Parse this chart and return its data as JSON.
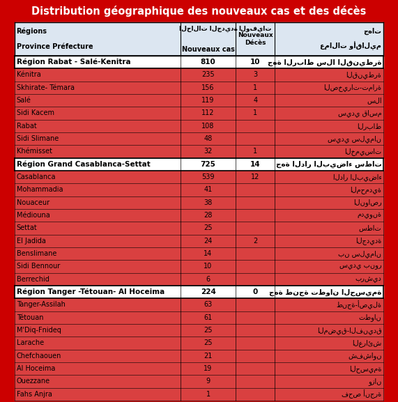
{
  "title": "Distribution géographique des nouveaux cas et des décès",
  "title_bg": "#cc0000",
  "title_color": "#ffffff",
  "header_bg": "#dce6f1",
  "region_bg": "#ffffff",
  "row_bg_red": "#d94040",
  "row_bg_light": "#dce6f1",
  "border_color": "#000000",
  "col_headers": [
    "Régions\n\nProvince Préfecture",
    "الحالات الجديدة\nNouveaux cas",
    "الوفيات\nNouveaux\nDécès",
    "جهات\n\nعمالات وأقاليم"
  ],
  "rows": [
    {
      "type": "region",
      "left": "Région Rabat - Salé-Kenitra",
      "mid1": "810",
      "mid2": "10",
      "right": "جهة الرباط سلا القنيطرة"
    },
    {
      "type": "data",
      "left": "Kénitra",
      "mid1": "235",
      "mid2": "3",
      "right": "القنيطرة"
    },
    {
      "type": "data",
      "left": "Skhirate- Témara",
      "mid1": "156",
      "mid2": "1",
      "right": "الصخيرات-تمارة"
    },
    {
      "type": "data",
      "left": "Salé",
      "mid1": "119",
      "mid2": "4",
      "right": "سلا"
    },
    {
      "type": "data",
      "left": "Sidi Kacem",
      "mid1": "112",
      "mid2": "1",
      "right": "سيدي قاسم"
    },
    {
      "type": "data",
      "left": "Rabat",
      "mid1": "108",
      "mid2": "",
      "right": "الرباط"
    },
    {
      "type": "data",
      "left": "Sidi Slimane",
      "mid1": "48",
      "mid2": "",
      "right": "سيدي سليمان"
    },
    {
      "type": "data",
      "left": "Khémisset",
      "mid1": "32",
      "mid2": "1",
      "right": "الخميسات"
    },
    {
      "type": "region",
      "left": "Région Grand Casablanca-Settat",
      "mid1": "725",
      "mid2": "14",
      "right": "جهة الدار البيضاء سطات"
    },
    {
      "type": "data",
      "left": "Casablanca",
      "mid1": "539",
      "mid2": "12",
      "right": "الدار البيضاء"
    },
    {
      "type": "data",
      "left": "Mohammadia",
      "mid1": "41",
      "mid2": "",
      "right": "المحمدية"
    },
    {
      "type": "data",
      "left": "Nouaceur",
      "mid1": "38",
      "mid2": "",
      "right": "النواصر"
    },
    {
      "type": "data",
      "left": "Médiouna",
      "mid1": "28",
      "mid2": "",
      "right": "مديونة"
    },
    {
      "type": "data",
      "left": "Settat",
      "mid1": "25",
      "mid2": "",
      "right": "سطات"
    },
    {
      "type": "data",
      "left": "El Jadida",
      "mid1": "24",
      "mid2": "2",
      "right": "الجديدة"
    },
    {
      "type": "data",
      "left": "Benslimane",
      "mid1": "14",
      "mid2": "",
      "right": "بن سليمان"
    },
    {
      "type": "data",
      "left": "Sidi Bennour",
      "mid1": "10",
      "mid2": "",
      "right": "سيدي بنور"
    },
    {
      "type": "data",
      "left": "Berrechid",
      "mid1": "6",
      "mid2": "",
      "right": "برشيد"
    },
    {
      "type": "region",
      "left": "Région Tanger -Tétouan- Al Hoceima",
      "mid1": "224",
      "mid2": "0",
      "right": "جهة طنجة تطوان الحسيمة"
    },
    {
      "type": "data",
      "left": "Tanger-Assilah",
      "mid1": "63",
      "mid2": "",
      "right": "طنجة-أصيلة"
    },
    {
      "type": "data",
      "left": "Tétouan",
      "mid1": "61",
      "mid2": "",
      "right": "تطوان"
    },
    {
      "type": "data",
      "left": "M'Diq-Fnideq",
      "mid1": "25",
      "mid2": "",
      "right": "المضيق-الفنيدق"
    },
    {
      "type": "data",
      "left": "Larache",
      "mid1": "25",
      "mid2": "",
      "right": "العرائش"
    },
    {
      "type": "data",
      "left": "Chefchaouen",
      "mid1": "21",
      "mid2": "",
      "right": "شفشاون"
    },
    {
      "type": "data",
      "left": "Al Hoceima",
      "mid1": "19",
      "mid2": "",
      "right": "الحسيمة"
    },
    {
      "type": "data",
      "left": "Ouezzane",
      "mid1": "9",
      "mid2": "",
      "right": "وزان"
    },
    {
      "type": "data",
      "left": "Fahs Anjra",
      "mid1": "1",
      "mid2": "",
      "right": "فحص أنجرة"
    }
  ]
}
